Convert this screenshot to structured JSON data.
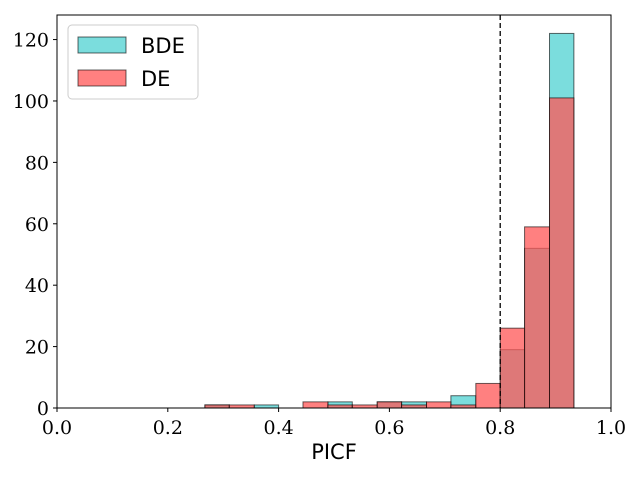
{
  "chart_data": {
    "type": "bar",
    "subtype": "overlaid-histogram",
    "xlabel": "PICF",
    "ylabel": "",
    "xlim": [
      0.0,
      1.0
    ],
    "ylim": [
      0,
      128
    ],
    "x_ticks": [
      "0.0",
      "0.2",
      "0.4",
      "0.6",
      "0.8",
      "1.0"
    ],
    "y_ticks": [
      "0",
      "20",
      "40",
      "60",
      "80",
      "100",
      "120"
    ],
    "grid": false,
    "legend_position": "top-left",
    "threshold_line": {
      "x": 0.8,
      "style": "dashed",
      "color": "#000000"
    },
    "series": [
      {
        "name": "BDE",
        "color": "#4fd1d1",
        "bins": [
          {
            "x0": 0.267,
            "x1": 0.311,
            "value": 1
          },
          {
            "x0": 0.356,
            "x1": 0.4,
            "value": 1
          },
          {
            "x0": 0.489,
            "x1": 0.533,
            "value": 2
          },
          {
            "x0": 0.578,
            "x1": 0.622,
            "value": 2
          },
          {
            "x0": 0.622,
            "x1": 0.667,
            "value": 2
          },
          {
            "x0": 0.711,
            "x1": 0.756,
            "value": 4
          },
          {
            "x0": 0.8,
            "x1": 0.844,
            "value": 19
          },
          {
            "x0": 0.844,
            "x1": 0.889,
            "value": 52
          },
          {
            "x0": 0.889,
            "x1": 0.933,
            "value": 122
          }
        ]
      },
      {
        "name": "DE",
        "color": "#ff5555",
        "bins": [
          {
            "x0": 0.267,
            "x1": 0.311,
            "value": 1
          },
          {
            "x0": 0.311,
            "x1": 0.356,
            "value": 1
          },
          {
            "x0": 0.444,
            "x1": 0.489,
            "value": 2
          },
          {
            "x0": 0.489,
            "x1": 0.533,
            "value": 1
          },
          {
            "x0": 0.533,
            "x1": 0.578,
            "value": 1
          },
          {
            "x0": 0.578,
            "x1": 0.622,
            "value": 2
          },
          {
            "x0": 0.622,
            "x1": 0.667,
            "value": 1
          },
          {
            "x0": 0.667,
            "x1": 0.711,
            "value": 2
          },
          {
            "x0": 0.711,
            "x1": 0.756,
            "value": 1
          },
          {
            "x0": 0.756,
            "x1": 0.8,
            "value": 8
          },
          {
            "x0": 0.8,
            "x1": 0.844,
            "value": 26
          },
          {
            "x0": 0.844,
            "x1": 0.889,
            "value": 59
          },
          {
            "x0": 0.889,
            "x1": 0.933,
            "value": 101
          }
        ]
      }
    ]
  }
}
